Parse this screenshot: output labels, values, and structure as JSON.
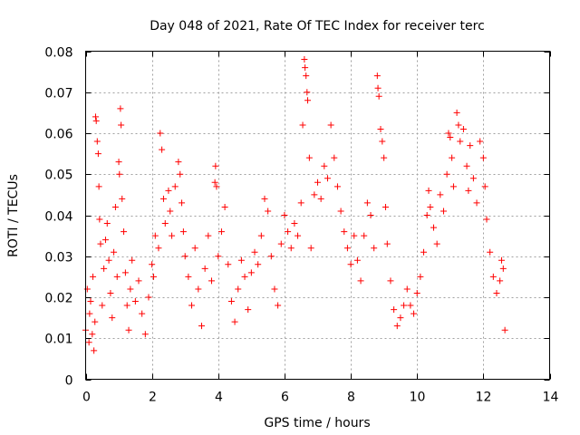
{
  "chart_data": {
    "type": "scatter",
    "title": "Day 048 of 2021, Rate Of TEC Index for receiver terc",
    "xlabel": "GPS time / hours",
    "ylabel": "ROTI / TECUs",
    "xlim": [
      0,
      14
    ],
    "ylim": [
      0,
      0.08
    ],
    "xticks": [
      "0",
      "2",
      "4",
      "6",
      "8",
      "10",
      "12",
      "14"
    ],
    "yticks": [
      "0",
      "0.01",
      "0.02",
      "0.03",
      "0.04",
      "0.05",
      "0.06",
      "0.07",
      "0.08"
    ],
    "grid": true,
    "marker": "plus",
    "color": "#ff0000",
    "series": [
      {
        "points": [
          [
            0.0,
            0.012
          ],
          [
            0.05,
            0.022
          ],
          [
            0.1,
            0.009
          ],
          [
            0.12,
            0.016
          ],
          [
            0.15,
            0.019
          ],
          [
            0.2,
            0.011
          ],
          [
            0.22,
            0.025
          ],
          [
            0.25,
            0.007
          ],
          [
            0.28,
            0.014
          ],
          [
            0.3,
            0.064
          ],
          [
            0.32,
            0.063
          ],
          [
            0.35,
            0.058
          ],
          [
            0.38,
            0.055
          ],
          [
            0.4,
            0.047
          ],
          [
            0.42,
            0.039
          ],
          [
            0.45,
            0.033
          ],
          [
            0.5,
            0.018
          ],
          [
            0.55,
            0.027
          ],
          [
            0.6,
            0.034
          ],
          [
            0.65,
            0.038
          ],
          [
            0.7,
            0.029
          ],
          [
            0.75,
            0.021
          ],
          [
            0.8,
            0.015
          ],
          [
            0.85,
            0.031
          ],
          [
            0.9,
            0.042
          ],
          [
            0.95,
            0.025
          ],
          [
            1.0,
            0.053
          ],
          [
            1.02,
            0.05
          ],
          [
            1.05,
            0.066
          ],
          [
            1.07,
            0.062
          ],
          [
            1.1,
            0.044
          ],
          [
            1.15,
            0.036
          ],
          [
            1.2,
            0.026
          ],
          [
            1.25,
            0.018
          ],
          [
            1.3,
            0.012
          ],
          [
            1.35,
            0.022
          ],
          [
            1.4,
            0.029
          ],
          [
            1.5,
            0.019
          ],
          [
            1.6,
            0.024
          ],
          [
            1.7,
            0.016
          ],
          [
            1.8,
            0.011
          ],
          [
            1.9,
            0.02
          ],
          [
            2.0,
            0.028
          ],
          [
            2.05,
            0.025
          ],
          [
            2.1,
            0.035
          ],
          [
            2.2,
            0.032
          ],
          [
            2.25,
            0.06
          ],
          [
            2.3,
            0.056
          ],
          [
            2.35,
            0.044
          ],
          [
            2.4,
            0.038
          ],
          [
            2.5,
            0.046
          ],
          [
            2.55,
            0.041
          ],
          [
            2.6,
            0.035
          ],
          [
            2.7,
            0.047
          ],
          [
            2.8,
            0.053
          ],
          [
            2.85,
            0.05
          ],
          [
            2.9,
            0.043
          ],
          [
            2.95,
            0.036
          ],
          [
            3.0,
            0.03
          ],
          [
            3.1,
            0.025
          ],
          [
            3.2,
            0.018
          ],
          [
            3.3,
            0.032
          ],
          [
            3.4,
            0.022
          ],
          [
            3.5,
            0.013
          ],
          [
            3.6,
            0.027
          ],
          [
            3.7,
            0.035
          ],
          [
            3.8,
            0.024
          ],
          [
            3.9,
            0.048
          ],
          [
            3.92,
            0.052
          ],
          [
            3.95,
            0.047
          ],
          [
            4.0,
            0.03
          ],
          [
            4.1,
            0.036
          ],
          [
            4.2,
            0.042
          ],
          [
            4.3,
            0.028
          ],
          [
            4.4,
            0.019
          ],
          [
            4.5,
            0.014
          ],
          [
            4.6,
            0.022
          ],
          [
            4.7,
            0.029
          ],
          [
            4.8,
            0.025
          ],
          [
            4.9,
            0.017
          ],
          [
            5.0,
            0.026
          ],
          [
            5.1,
            0.031
          ],
          [
            5.2,
            0.028
          ],
          [
            5.3,
            0.035
          ],
          [
            5.4,
            0.044
          ],
          [
            5.5,
            0.041
          ],
          [
            5.6,
            0.03
          ],
          [
            5.7,
            0.022
          ],
          [
            5.8,
            0.018
          ],
          [
            5.9,
            0.033
          ],
          [
            6.0,
            0.04
          ],
          [
            6.1,
            0.036
          ],
          [
            6.2,
            0.032
          ],
          [
            6.3,
            0.038
          ],
          [
            6.4,
            0.035
          ],
          [
            6.5,
            0.043
          ],
          [
            6.55,
            0.062
          ],
          [
            6.6,
            0.078
          ],
          [
            6.62,
            0.076
          ],
          [
            6.65,
            0.074
          ],
          [
            6.68,
            0.07
          ],
          [
            6.7,
            0.068
          ],
          [
            6.75,
            0.054
          ],
          [
            6.8,
            0.032
          ],
          [
            6.9,
            0.045
          ],
          [
            7.0,
            0.048
          ],
          [
            7.1,
            0.044
          ],
          [
            7.2,
            0.052
          ],
          [
            7.3,
            0.049
          ],
          [
            7.4,
            0.062
          ],
          [
            7.5,
            0.054
          ],
          [
            7.6,
            0.047
          ],
          [
            7.7,
            0.041
          ],
          [
            7.8,
            0.036
          ],
          [
            7.9,
            0.032
          ],
          [
            8.0,
            0.028
          ],
          [
            8.1,
            0.035
          ],
          [
            8.2,
            0.029
          ],
          [
            8.3,
            0.024
          ],
          [
            8.4,
            0.035
          ],
          [
            8.5,
            0.043
          ],
          [
            8.6,
            0.04
          ],
          [
            8.7,
            0.032
          ],
          [
            8.8,
            0.074
          ],
          [
            8.82,
            0.071
          ],
          [
            8.85,
            0.069
          ],
          [
            8.9,
            0.061
          ],
          [
            8.95,
            0.058
          ],
          [
            9.0,
            0.054
          ],
          [
            9.05,
            0.042
          ],
          [
            9.1,
            0.033
          ],
          [
            9.2,
            0.024
          ],
          [
            9.3,
            0.017
          ],
          [
            9.4,
            0.013
          ],
          [
            9.5,
            0.015
          ],
          [
            9.6,
            0.018
          ],
          [
            9.7,
            0.022
          ],
          [
            9.8,
            0.018
          ],
          [
            9.9,
            0.016
          ],
          [
            10.0,
            0.021
          ],
          [
            10.1,
            0.025
          ],
          [
            10.2,
            0.031
          ],
          [
            10.3,
            0.04
          ],
          [
            10.35,
            0.046
          ],
          [
            10.4,
            0.042
          ],
          [
            10.5,
            0.037
          ],
          [
            10.6,
            0.033
          ],
          [
            10.7,
            0.045
          ],
          [
            10.8,
            0.041
          ],
          [
            10.9,
            0.05
          ],
          [
            10.95,
            0.06
          ],
          [
            11.0,
            0.059
          ],
          [
            11.05,
            0.054
          ],
          [
            11.1,
            0.047
          ],
          [
            11.2,
            0.065
          ],
          [
            11.25,
            0.062
          ],
          [
            11.3,
            0.058
          ],
          [
            11.4,
            0.061
          ],
          [
            11.5,
            0.052
          ],
          [
            11.55,
            0.046
          ],
          [
            11.6,
            0.057
          ],
          [
            11.7,
            0.049
          ],
          [
            11.8,
            0.043
          ],
          [
            11.9,
            0.058
          ],
          [
            12.0,
            0.054
          ],
          [
            12.05,
            0.047
          ],
          [
            12.1,
            0.039
          ],
          [
            12.2,
            0.031
          ],
          [
            12.3,
            0.025
          ],
          [
            12.4,
            0.021
          ],
          [
            12.5,
            0.024
          ],
          [
            12.55,
            0.029
          ],
          [
            12.6,
            0.027
          ],
          [
            12.65,
            0.012
          ]
        ]
      }
    ]
  }
}
